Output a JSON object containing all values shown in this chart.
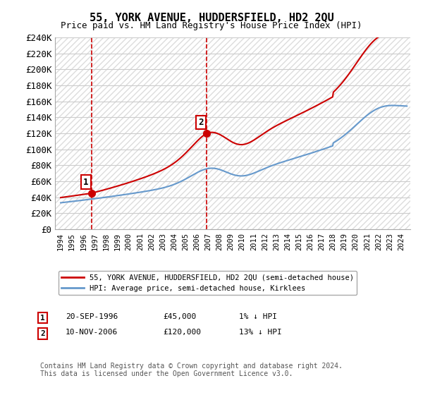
{
  "title": "55, YORK AVENUE, HUDDERSFIELD, HD2 2QU",
  "subtitle": "Price paid vs. HM Land Registry's House Price Index (HPI)",
  "ylim": [
    0,
    240000
  ],
  "yticks": [
    0,
    20000,
    40000,
    60000,
    80000,
    100000,
    120000,
    140000,
    160000,
    180000,
    200000,
    220000,
    240000
  ],
  "ytick_labels": [
    "£0",
    "£20K",
    "£40K",
    "£60K",
    "£80K",
    "£100K",
    "£120K",
    "£140K",
    "£160K",
    "£180K",
    "£200K",
    "£220K",
    "£240K"
  ],
  "sale1_date": 1996.72,
  "sale1_price": 45000,
  "sale2_date": 2006.86,
  "sale2_price": 120000,
  "line_color_property": "#cc0000",
  "line_color_hpi": "#6699cc",
  "vline_color": "#cc0000",
  "dot_color": "#cc0000",
  "legend_label_property": "55, YORK AVENUE, HUDDERSFIELD, HD2 2QU (semi-detached house)",
  "legend_label_hpi": "HPI: Average price, semi-detached house, Kirklees",
  "footnote": "Contains HM Land Registry data © Crown copyright and database right 2024.\nThis data is licensed under the Open Government Licence v3.0.",
  "background_color": "#ffffff",
  "grid_color": "#cccccc"
}
